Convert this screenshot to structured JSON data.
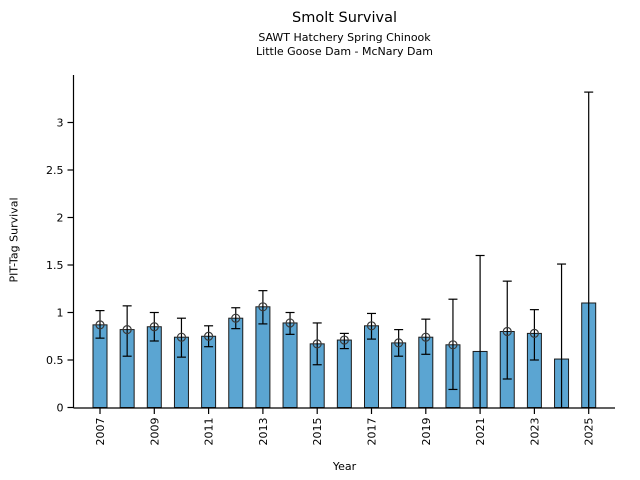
{
  "chart_data": {
    "type": "bar",
    "title": "Smolt Survival",
    "subtitle1": "SAWT Hatchery Spring Chinook",
    "subtitle2": "Little Goose Dam - McNary Dam",
    "xlabel": "Year",
    "ylabel": "PIT-Tag Survival",
    "ylim": [
      0,
      3.5
    ],
    "yticks": [
      0,
      0.5,
      1,
      1.5,
      2,
      2.5,
      3
    ],
    "xticks": [
      2007,
      2009,
      2011,
      2013,
      2015,
      2017,
      2019,
      2021,
      2023,
      2025
    ],
    "bar_color": "#5BA5D2",
    "bar_edge_color": "#1a1a1a",
    "error_color": "#000000",
    "marker_style": "open-circle",
    "marker_color": "#3a3a3a",
    "grid": "off",
    "legend": "none",
    "series": [
      {
        "year": 2007,
        "value": 0.87,
        "ci_low": 0.73,
        "ci_high": 1.02,
        "point_marker": true
      },
      {
        "year": 2008,
        "value": 0.82,
        "ci_low": 0.54,
        "ci_high": 1.07,
        "point_marker": true
      },
      {
        "year": 2009,
        "value": 0.85,
        "ci_low": 0.7,
        "ci_high": 1.0,
        "point_marker": true
      },
      {
        "year": 2010,
        "value": 0.74,
        "ci_low": 0.53,
        "ci_high": 0.94,
        "point_marker": true
      },
      {
        "year": 2011,
        "value": 0.75,
        "ci_low": 0.64,
        "ci_high": 0.86,
        "point_marker": true
      },
      {
        "year": 2012,
        "value": 0.94,
        "ci_low": 0.83,
        "ci_high": 1.05,
        "point_marker": true
      },
      {
        "year": 2013,
        "value": 1.06,
        "ci_low": 0.88,
        "ci_high": 1.23,
        "point_marker": true
      },
      {
        "year": 2014,
        "value": 0.89,
        "ci_low": 0.77,
        "ci_high": 1.0,
        "point_marker": true
      },
      {
        "year": 2015,
        "value": 0.67,
        "ci_low": 0.45,
        "ci_high": 0.89,
        "point_marker": true
      },
      {
        "year": 2016,
        "value": 0.71,
        "ci_low": 0.62,
        "ci_high": 0.78,
        "point_marker": true
      },
      {
        "year": 2017,
        "value": 0.86,
        "ci_low": 0.72,
        "ci_high": 0.99,
        "point_marker": true
      },
      {
        "year": 2018,
        "value": 0.68,
        "ci_low": 0.54,
        "ci_high": 0.82,
        "point_marker": true
      },
      {
        "year": 2019,
        "value": 0.74,
        "ci_low": 0.56,
        "ci_high": 0.93,
        "point_marker": true
      },
      {
        "year": 2020,
        "value": 0.66,
        "ci_low": 0.19,
        "ci_high": 1.14,
        "point_marker": true
      },
      {
        "year": 2021,
        "value": 0.59,
        "ci_low": 0.0,
        "ci_high": 1.6,
        "point_marker": false
      },
      {
        "year": 2022,
        "value": 0.8,
        "ci_low": 0.3,
        "ci_high": 1.33,
        "point_marker": true
      },
      {
        "year": 2023,
        "value": 0.78,
        "ci_low": 0.5,
        "ci_high": 1.03,
        "point_marker": true
      },
      {
        "year": 2024,
        "value": 0.51,
        "ci_low": 0.0,
        "ci_high": 1.51,
        "point_marker": false
      },
      {
        "year": 2025,
        "value": 1.1,
        "ci_low": 0.0,
        "ci_high": 3.32,
        "point_marker": false
      }
    ]
  }
}
